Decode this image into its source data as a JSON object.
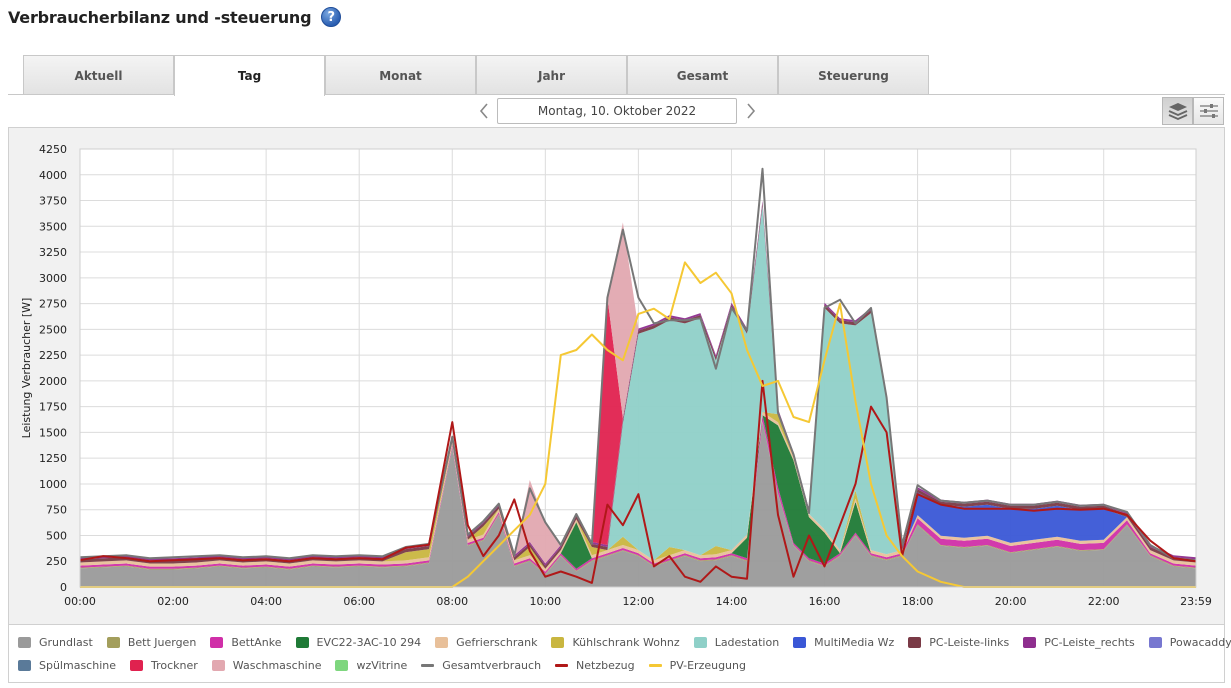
{
  "header": {
    "title": "Verbraucherbilanz und -steuerung",
    "help_label": "?"
  },
  "tabs": [
    {
      "label": "Aktuell",
      "active": false
    },
    {
      "label": "Tag",
      "active": true
    },
    {
      "label": "Monat",
      "active": false
    },
    {
      "label": "Jahr",
      "active": false
    },
    {
      "label": "Gesamt",
      "active": false
    },
    {
      "label": "Steuerung",
      "active": false
    }
  ],
  "date_nav": {
    "date": "Montag, 10. Oktober 2022",
    "prev_icon": "chevron-left-icon",
    "next_icon": "chevron-right-icon"
  },
  "view_buttons": [
    {
      "icon": "layers-icon",
      "active": true
    },
    {
      "icon": "sliders-icon",
      "active": false
    }
  ],
  "chart_data": {
    "type": "area",
    "stacked": true,
    "ylabel": "Leistung Verbraucher [W]",
    "xlabel": "",
    "ylim": [
      0,
      4250
    ],
    "y_ticks": [
      "0",
      "250",
      "500",
      "750",
      "1000",
      "1250",
      "1500",
      "1750",
      "2000",
      "2250",
      "2500",
      "2750",
      "3000",
      "3250",
      "3500",
      "3750",
      "4000",
      "4250"
    ],
    "x_ticks": [
      "00:00",
      "02:00",
      "04:00",
      "06:00",
      "08:00",
      "10:00",
      "12:00",
      "14:00",
      "16:00",
      "18:00",
      "20:00",
      "22:00",
      "23:59"
    ],
    "grid": true,
    "legend_position": "bottom",
    "x": [
      "00:00",
      "00:30",
      "01:00",
      "01:30",
      "02:00",
      "02:30",
      "03:00",
      "03:30",
      "04:00",
      "04:30",
      "05:00",
      "05:30",
      "06:00",
      "06:30",
      "07:00",
      "07:30",
      "08:00",
      "08:20",
      "08:40",
      "09:00",
      "09:20",
      "09:40",
      "10:00",
      "10:20",
      "10:40",
      "11:00",
      "11:20",
      "11:40",
      "12:00",
      "12:20",
      "12:40",
      "13:00",
      "13:20",
      "13:40",
      "14:00",
      "14:20",
      "14:40",
      "15:00",
      "15:20",
      "15:40",
      "16:00",
      "16:20",
      "16:40",
      "17:00",
      "17:20",
      "17:40",
      "18:00",
      "18:30",
      "19:00",
      "19:30",
      "20:00",
      "20:30",
      "21:00",
      "21:30",
      "22:00",
      "22:30",
      "23:00",
      "23:30",
      "23:59"
    ],
    "series": [
      {
        "name": "Grundlast",
        "color": "#9a9a9a",
        "values": [
          180,
          190,
          200,
          170,
          170,
          180,
          200,
          180,
          190,
          170,
          200,
          190,
          200,
          190,
          200,
          230,
          1350,
          400,
          450,
          700,
          200,
          250,
          120,
          300,
          150,
          250,
          300,
          350,
          300,
          200,
          250,
          300,
          250,
          260,
          300,
          250,
          1600,
          900,
          400,
          250,
          200,
          300,
          500,
          300,
          260,
          300,
          600,
          400,
          380,
          400,
          330,
          360,
          390,
          350,
          360,
          600,
          300,
          200,
          180
        ]
      },
      {
        "name": "Bett Juergen",
        "color": "#a39e5c",
        "values": [
          8,
          8,
          8,
          8,
          8,
          8,
          8,
          8,
          8,
          8,
          8,
          8,
          8,
          8,
          8,
          8,
          8,
          8,
          8,
          8,
          8,
          8,
          8,
          8,
          8,
          8,
          8,
          8,
          8,
          8,
          8,
          8,
          8,
          8,
          8,
          8,
          8,
          8,
          8,
          8,
          8,
          8,
          8,
          8,
          8,
          8,
          8,
          8,
          8,
          8,
          8,
          8,
          8,
          8,
          8,
          8,
          8,
          8,
          8
        ]
      },
      {
        "name": "BettAnke",
        "color": "#d02fa8",
        "values": [
          20,
          20,
          20,
          20,
          20,
          20,
          20,
          20,
          20,
          20,
          20,
          20,
          20,
          20,
          20,
          20,
          20,
          20,
          20,
          20,
          20,
          20,
          20,
          20,
          20,
          20,
          20,
          20,
          20,
          20,
          20,
          20,
          20,
          20,
          20,
          20,
          60,
          60,
          20,
          20,
          20,
          20,
          20,
          20,
          20,
          20,
          60,
          60,
          60,
          60,
          60,
          60,
          60,
          60,
          60,
          40,
          20,
          20,
          20
        ]
      },
      {
        "name": "EVC22-3AC-10 294",
        "color": "#1f7a36",
        "values": [
          0,
          0,
          0,
          0,
          0,
          0,
          0,
          0,
          0,
          0,
          0,
          0,
          0,
          0,
          0,
          0,
          0,
          0,
          0,
          0,
          0,
          0,
          0,
          0,
          450,
          0,
          0,
          0,
          0,
          0,
          0,
          0,
          0,
          0,
          0,
          200,
          0,
          600,
          800,
          400,
          300,
          0,
          300,
          0,
          0,
          0,
          0,
          0,
          0,
          0,
          0,
          0,
          0,
          0,
          0,
          0,
          0,
          0,
          0
        ]
      },
      {
        "name": "Gefrierschrank",
        "color": "#e8c09a",
        "values": [
          30,
          30,
          30,
          30,
          30,
          30,
          30,
          30,
          30,
          30,
          30,
          30,
          30,
          30,
          30,
          30,
          30,
          30,
          30,
          30,
          30,
          30,
          30,
          30,
          30,
          30,
          30,
          30,
          30,
          30,
          30,
          30,
          30,
          30,
          30,
          30,
          30,
          30,
          30,
          30,
          30,
          30,
          30,
          30,
          30,
          30,
          30,
          30,
          30,
          30,
          30,
          30,
          30,
          30,
          30,
          30,
          30,
          30,
          30
        ]
      },
      {
        "name": "Kühlschrank Wohnz",
        "color": "#c9b640",
        "values": [
          0,
          0,
          0,
          0,
          0,
          0,
          0,
          0,
          0,
          0,
          0,
          0,
          0,
          0,
          80,
          80,
          0,
          0,
          80,
          0,
          0,
          80,
          0,
          0,
          0,
          80,
          0,
          80,
          0,
          0,
          80,
          0,
          0,
          80,
          0,
          0,
          0,
          80,
          0,
          0,
          0,
          0,
          80,
          0,
          0,
          0,
          0,
          0,
          0,
          0,
          0,
          0,
          0,
          0,
          0,
          0,
          0,
          0,
          0
        ]
      },
      {
        "name": "Ladestation",
        "color": "#8fd0c8",
        "values": [
          0,
          0,
          0,
          0,
          0,
          0,
          0,
          0,
          0,
          0,
          0,
          0,
          0,
          0,
          0,
          0,
          0,
          0,
          0,
          0,
          0,
          0,
          0,
          0,
          0,
          0,
          0,
          1100,
          2100,
          2250,
          2200,
          2200,
          2300,
          1800,
          2350,
          1950,
          2000,
          0,
          0,
          0,
          2150,
          2200,
          1600,
          2300,
          1500,
          0,
          0,
          0,
          0,
          0,
          0,
          0,
          0,
          0,
          0,
          0,
          0,
          0,
          0
        ]
      },
      {
        "name": "MultiMedia Wz",
        "color": "#3a57d6",
        "values": [
          0,
          0,
          0,
          0,
          0,
          0,
          0,
          0,
          0,
          0,
          0,
          0,
          0,
          0,
          0,
          0,
          0,
          0,
          0,
          0,
          0,
          0,
          0,
          0,
          0,
          0,
          0,
          0,
          0,
          0,
          0,
          0,
          0,
          0,
          0,
          0,
          0,
          0,
          0,
          0,
          0,
          0,
          0,
          0,
          0,
          0,
          220,
          300,
          300,
          300,
          330,
          300,
          300,
          300,
          300,
          0,
          0,
          0,
          0
        ]
      },
      {
        "name": "PC-Leiste-links",
        "color": "#7a3a46",
        "values": [
          30,
          30,
          30,
          30,
          30,
          30,
          30,
          30,
          30,
          30,
          30,
          30,
          30,
          30,
          30,
          30,
          30,
          30,
          30,
          30,
          30,
          30,
          30,
          30,
          30,
          30,
          30,
          30,
          30,
          30,
          30,
          30,
          30,
          30,
          30,
          30,
          30,
          30,
          30,
          30,
          30,
          30,
          30,
          30,
          30,
          30,
          30,
          30,
          30,
          30,
          30,
          30,
          30,
          30,
          30,
          30,
          30,
          30,
          30
        ]
      },
      {
        "name": "PC-Leiste_rechts",
        "color": "#8e2e8e",
        "values": [
          20,
          20,
          20,
          20,
          20,
          20,
          20,
          20,
          20,
          20,
          20,
          20,
          20,
          20,
          20,
          20,
          20,
          20,
          20,
          20,
          20,
          20,
          20,
          20,
          20,
          20,
          20,
          20,
          20,
          20,
          20,
          20,
          20,
          20,
          20,
          20,
          20,
          20,
          20,
          20,
          20,
          20,
          20,
          20,
          20,
          20,
          20,
          20,
          20,
          20,
          20,
          20,
          20,
          20,
          20,
          20,
          20,
          20,
          20
        ]
      },
      {
        "name": "Powacaddy",
        "color": "#7777d0",
        "values": [
          0,
          0,
          0,
          0,
          0,
          0,
          0,
          0,
          0,
          0,
          0,
          0,
          0,
          0,
          0,
          0,
          0,
          0,
          0,
          0,
          0,
          0,
          0,
          0,
          0,
          0,
          0,
          0,
          0,
          0,
          0,
          0,
          0,
          0,
          0,
          0,
          0,
          0,
          0,
          0,
          0,
          0,
          0,
          0,
          0,
          0,
          0,
          0,
          0,
          0,
          0,
          0,
          0,
          0,
          0,
          0,
          0,
          0,
          0
        ]
      },
      {
        "name": "Spülmaschine",
        "color": "#5a7a99",
        "values": [
          0,
          0,
          0,
          0,
          0,
          0,
          0,
          0,
          0,
          0,
          0,
          0,
          0,
          0,
          0,
          0,
          0,
          0,
          0,
          0,
          0,
          0,
          0,
          0,
          0,
          0,
          0,
          0,
          0,
          0,
          0,
          0,
          0,
          0,
          0,
          0,
          0,
          0,
          0,
          0,
          0,
          0,
          0,
          0,
          0,
          0,
          0,
          0,
          0,
          0,
          0,
          0,
          0,
          0,
          0,
          0,
          0,
          0,
          0
        ]
      },
      {
        "name": "Trockner",
        "color": "#e0224f",
        "values": [
          0,
          0,
          0,
          0,
          0,
          0,
          0,
          0,
          0,
          0,
          0,
          0,
          0,
          0,
          0,
          0,
          0,
          0,
          0,
          0,
          0,
          0,
          0,
          0,
          0,
          0,
          2400,
          0,
          0,
          0,
          0,
          0,
          0,
          0,
          0,
          0,
          0,
          0,
          0,
          0,
          0,
          0,
          0,
          0,
          0,
          0,
          0,
          0,
          0,
          0,
          0,
          0,
          0,
          0,
          0,
          0,
          0,
          0,
          0
        ]
      },
      {
        "name": "Waschmaschine",
        "color": "#e2a8b0",
        "values": [
          0,
          0,
          0,
          0,
          0,
          0,
          0,
          0,
          0,
          0,
          0,
          0,
          0,
          0,
          0,
          0,
          0,
          0,
          0,
          0,
          0,
          600,
          400,
          0,
          0,
          0,
          0,
          1900,
          0,
          0,
          0,
          0,
          0,
          0,
          0,
          0,
          0,
          0,
          0,
          0,
          0,
          0,
          0,
          0,
          0,
          0,
          0,
          0,
          0,
          0,
          0,
          0,
          0,
          0,
          0,
          0,
          0,
          0,
          0
        ]
      },
      {
        "name": "wzVitrine",
        "color": "#7ed67e",
        "values": [
          0,
          0,
          0,
          0,
          0,
          0,
          0,
          0,
          0,
          0,
          0,
          0,
          0,
          0,
          0,
          0,
          0,
          0,
          0,
          0,
          0,
          0,
          0,
          0,
          0,
          0,
          0,
          0,
          0,
          0,
          0,
          0,
          0,
          0,
          0,
          0,
          0,
          0,
          0,
          0,
          0,
          0,
          0,
          0,
          0,
          0,
          0,
          0,
          0,
          0,
          0,
          0,
          0,
          0,
          0,
          0,
          0,
          0,
          0
        ]
      }
    ],
    "lines": [
      {
        "name": "Gesamtverbrauch",
        "color": "#777777",
        "values": [
          288,
          298,
          308,
          278,
          288,
          298,
          308,
          288,
          298,
          278,
          308,
          298,
          308,
          298,
          388,
          418,
          1458,
          508,
          638,
          808,
          308,
          958,
          628,
          408,
          708,
          418,
          2808,
          3468,
          2808,
          2558,
          2588,
          2588,
          2608,
          2118,
          2708,
          2488,
          4058,
          1688,
          1288,
          718,
          2708,
          2788,
          2558,
          2708,
          1838,
          408,
          988,
          838,
          818,
          838,
          798,
          798,
          828,
          788,
          798,
          728,
          408,
          278,
          258
        ]
      },
      {
        "name": "Netzbezug",
        "color": "#b01818",
        "values": [
          260,
          300,
          280,
          250,
          260,
          270,
          280,
          260,
          270,
          250,
          280,
          270,
          280,
          270,
          380,
          410,
          1600,
          600,
          300,
          500,
          850,
          350,
          100,
          150,
          100,
          40,
          800,
          600,
          900,
          200,
          300,
          100,
          50,
          200,
          100,
          80,
          2000,
          700,
          100,
          500,
          200,
          600,
          1000,
          1750,
          1500,
          300,
          900,
          800,
          760,
          760,
          760,
          740,
          760,
          750,
          760,
          700,
          450,
          280,
          250
        ]
      },
      {
        "name": "PV-Erzeugung",
        "color": "#f5c834",
        "values": [
          0,
          0,
          0,
          0,
          0,
          0,
          0,
          0,
          0,
          0,
          0,
          0,
          0,
          0,
          0,
          0,
          0,
          100,
          250,
          400,
          550,
          700,
          1000,
          2250,
          2300,
          2450,
          2300,
          2200,
          2650,
          2700,
          2600,
          3150,
          2950,
          3050,
          2850,
          2300,
          1950,
          2000,
          1650,
          1600,
          2200,
          2750,
          1800,
          1000,
          500,
          300,
          150,
          50,
          0,
          0,
          0,
          0,
          0,
          0,
          0,
          0,
          0,
          0,
          0
        ]
      }
    ]
  }
}
